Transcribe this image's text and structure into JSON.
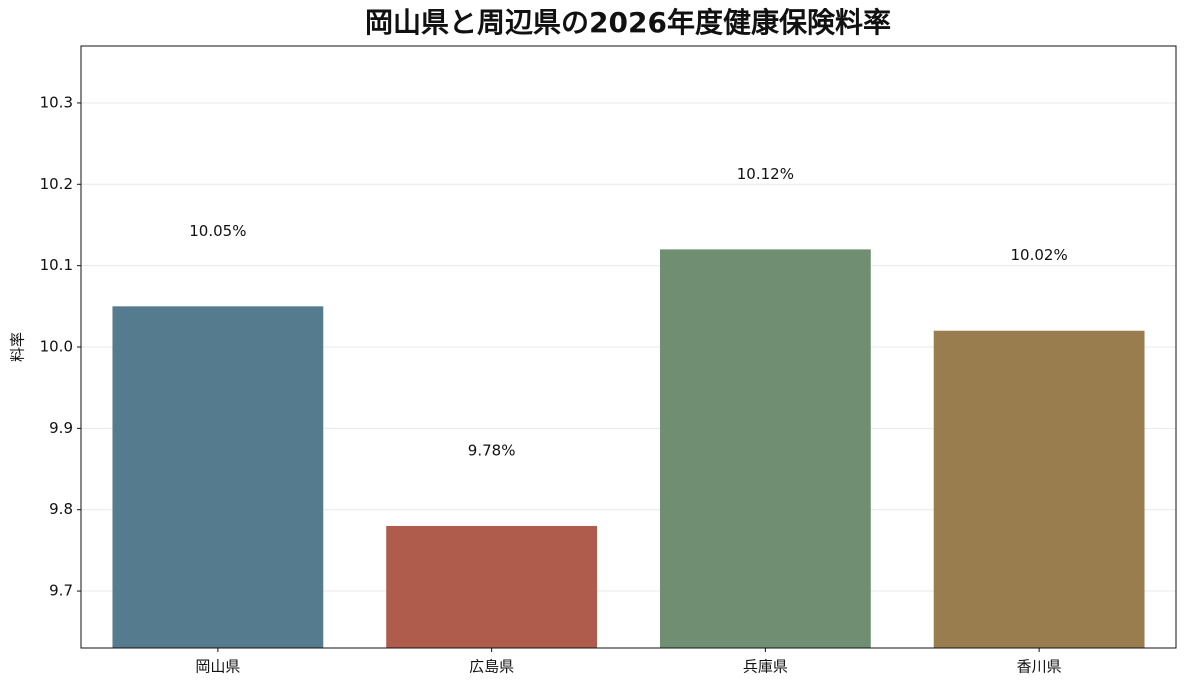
{
  "chart_data": {
    "type": "bar",
    "title": "岡山県と周辺県の2026年度健康保険料率",
    "y_label": "料率",
    "categories": [
      "岡山県",
      "広島県",
      "兵庫県",
      "香川県"
    ],
    "values": [
      10.05,
      9.78,
      10.12,
      10.02
    ],
    "value_labels": [
      "10.05%",
      "9.78%",
      "10.12%",
      "10.02%"
    ],
    "colors": [
      "#557b8e",
      "#b05c4d",
      "#6f8e72",
      "#9a7d4f"
    ],
    "ylim": [
      9.63,
      10.37
    ],
    "yticks": [
      9.7,
      9.8,
      9.9,
      {
        "value": 10,
        "label": "10.0"
      },
      10.1,
      10.2,
      10.3
    ],
    "grid": true
  }
}
